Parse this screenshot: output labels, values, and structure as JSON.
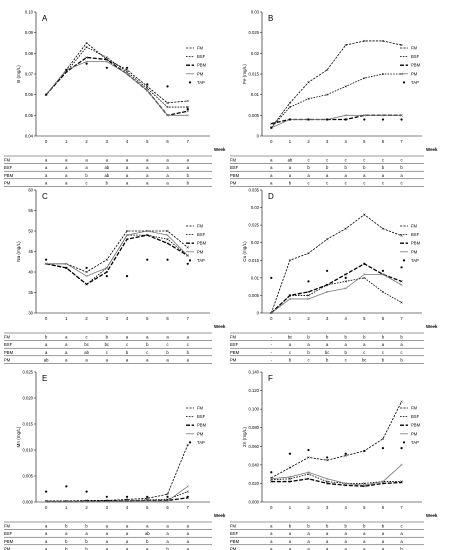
{
  "chart_data": [
    {
      "panel": "A",
      "type": "line",
      "ylabel": "B (mg/L)",
      "xlabel": "Week",
      "x": [
        0,
        1,
        2,
        3,
        4,
        5,
        6,
        7
      ],
      "ylim": [
        0.04,
        0.1
      ],
      "yticks": [
        0.04,
        0.05,
        0.06,
        0.07,
        0.08,
        0.09,
        0.1
      ],
      "ytick_labels": [
        "0.04",
        "0.05",
        "0.06",
        "0.07",
        "0.08",
        "0.09",
        "0.10"
      ],
      "series": [
        {
          "name": "FM",
          "values": [
            0.06,
            0.072,
            0.085,
            0.077,
            0.072,
            0.064,
            0.056,
            0.057
          ]
        },
        {
          "name": "BSF",
          "values": [
            0.06,
            0.071,
            0.083,
            0.078,
            0.071,
            0.063,
            0.054,
            0.054
          ]
        },
        {
          "name": "PBM",
          "values": [
            0.06,
            0.071,
            0.078,
            0.077,
            0.07,
            0.062,
            0.05,
            0.052
          ]
        },
        {
          "name": "PM",
          "values": [
            0.06,
            0.072,
            0.076,
            0.076,
            0.07,
            0.062,
            0.05,
            0.05
          ]
        },
        {
          "name": "TAP",
          "values": [
            0.06,
            0.072,
            0.075,
            0.073,
            0.073,
            0.065,
            0.064,
            0.053
          ]
        }
      ],
      "table": [
        {
          "label": "FM",
          "cells": [
            "a",
            "a",
            "a",
            "a",
            "a",
            "a",
            "a",
            "a"
          ]
        },
        {
          "label": "BSF",
          "cells": [
            "a",
            "a",
            "a",
            "ab",
            "a",
            "a",
            "a",
            "a"
          ]
        },
        {
          "label": "PBM",
          "cells": [
            "a",
            "a",
            "b",
            "ab",
            "a",
            "a",
            "a",
            "b"
          ]
        },
        {
          "label": "PM",
          "cells": [
            "a",
            "a",
            "c",
            "b",
            "a",
            "a",
            "a",
            "b"
          ]
        }
      ]
    },
    {
      "panel": "B",
      "type": "line",
      "ylabel": "Fe (mg/L)",
      "xlabel": "Week",
      "x": [
        0,
        1,
        2,
        3,
        4,
        5,
        6,
        7
      ],
      "ylim": [
        0,
        0.03
      ],
      "yticks": [
        0,
        0.005,
        0.01,
        0.015,
        0.02,
        0.025,
        0.03
      ],
      "ytick_labels": [
        "0",
        "0.005",
        "0.01",
        "0.015",
        "0.02",
        "0.025",
        "0.03"
      ],
      "series": [
        {
          "name": "FM",
          "values": [
            0.002,
            0.008,
            0.013,
            0.016,
            0.022,
            0.023,
            0.023,
            0.022
          ]
        },
        {
          "name": "BSF",
          "values": [
            0.002,
            0.007,
            0.009,
            0.01,
            0.012,
            0.014,
            0.015,
            0.015
          ]
        },
        {
          "name": "PBM",
          "values": [
            0.003,
            0.004,
            0.004,
            0.004,
            0.004,
            0.005,
            0.005,
            0.005
          ]
        },
        {
          "name": "PM",
          "values": [
            0.002,
            0.004,
            0.004,
            0.004,
            0.005,
            0.005,
            0.005,
            0.005
          ]
        },
        {
          "name": "TAP",
          "values": [
            0.002,
            0.004,
            0.004,
            0.004,
            0.004,
            0.004,
            0.004,
            0.004
          ]
        }
      ],
      "table": [
        {
          "label": "FM",
          "cells": [
            "a",
            "ab",
            "c",
            "c",
            "c",
            "c",
            "c",
            "c"
          ]
        },
        {
          "label": "BSF",
          "cells": [
            "a",
            "a",
            "b",
            "b",
            "b",
            "b",
            "b",
            "b"
          ]
        },
        {
          "label": "PBM",
          "cells": [
            "a",
            "a",
            "a",
            "a",
            "a",
            "a",
            "a",
            "a"
          ]
        },
        {
          "label": "PM",
          "cells": [
            "a",
            "b",
            "c",
            "c",
            "c",
            "c",
            "c",
            "c"
          ]
        }
      ]
    },
    {
      "panel": "C",
      "type": "line",
      "ylabel": "Na (mg/L)",
      "xlabel": "Week",
      "x": [
        0,
        1,
        2,
        3,
        4,
        5,
        6,
        7
      ],
      "ylim": [
        30,
        60
      ],
      "yticks": [
        30,
        35,
        40,
        45,
        50,
        55,
        60
      ],
      "ytick_labels": [
        "30",
        "35",
        "40",
        "45",
        "50",
        "55",
        "60"
      ],
      "series": [
        {
          "name": "FM",
          "values": [
            42,
            42,
            40,
            43,
            50,
            50,
            50,
            46
          ]
        },
        {
          "name": "BSF",
          "values": [
            42,
            41,
            37,
            41,
            49,
            49,
            48,
            44
          ]
        },
        {
          "name": "PBM",
          "values": [
            42,
            41,
            37,
            40,
            48,
            49,
            47,
            44
          ]
        },
        {
          "name": "PM",
          "values": [
            42,
            42,
            39,
            41,
            49,
            50,
            49,
            44
          ]
        },
        {
          "name": "TAP",
          "values": [
            43,
            41,
            41,
            39,
            39,
            43,
            43,
            42
          ]
        }
      ],
      "table": [
        {
          "label": "FM",
          "cells": [
            "b",
            "a",
            "c",
            "b",
            "a",
            "a",
            "a",
            "a"
          ]
        },
        {
          "label": "BSF",
          "cells": [
            "a",
            "a",
            "bc",
            "bc",
            "c",
            "b",
            "c",
            "c"
          ]
        },
        {
          "label": "PBM",
          "cells": [
            "a",
            "a",
            "ab",
            "c",
            "b",
            "c",
            "b",
            "b"
          ]
        },
        {
          "label": "PM",
          "cells": [
            "ab",
            "a",
            "a",
            "a",
            "a",
            "a",
            "a",
            "a"
          ]
        }
      ]
    },
    {
      "panel": "D",
      "type": "line",
      "ylabel": "Cu (mg/L)",
      "xlabel": "Week",
      "x": [
        0,
        1,
        2,
        3,
        4,
        5,
        6,
        7
      ],
      "ylim": [
        0,
        0.035
      ],
      "yticks": [
        0,
        0.005,
        0.01,
        0.015,
        0.02,
        0.025,
        0.03,
        0.035
      ],
      "ytick_labels": [
        "0",
        "0.005",
        "0.01",
        "0.015",
        "0.02",
        "0.025",
        "0.03",
        "0.035"
      ],
      "series": [
        {
          "name": "FM",
          "values": [
            0,
            0.015,
            0.017,
            0.021,
            0.024,
            0.028,
            0.024,
            0.022
          ]
        },
        {
          "name": "BSF",
          "values": [
            0,
            0.005,
            0.005,
            0.008,
            0.009,
            0.01,
            0.006,
            0.003
          ]
        },
        {
          "name": "PBM",
          "values": [
            0,
            0.005,
            0.006,
            0.008,
            0.011,
            0.014,
            0.011,
            0.009
          ]
        },
        {
          "name": "PM",
          "values": [
            0,
            0.004,
            0.004,
            0.006,
            0.007,
            0.011,
            0.011,
            0.008
          ]
        },
        {
          "name": "TAP",
          "values": [
            0.01,
            0.005,
            0.009,
            0.012,
            0.01,
            0.014,
            0.012,
            0.013
          ]
        }
      ],
      "table": [
        {
          "label": "FM",
          "cells": [
            "-",
            "bc",
            "b",
            "b",
            "b",
            "b",
            "b",
            "b"
          ]
        },
        {
          "label": "BSF",
          "cells": [
            "-",
            "a",
            "a",
            "a",
            "a",
            "a",
            "a",
            "a"
          ]
        },
        {
          "label": "PBM",
          "cells": [
            "-",
            "c",
            "b",
            "bc",
            "b",
            "c",
            "c",
            "c"
          ]
        },
        {
          "label": "PM",
          "cells": [
            "-",
            "b",
            "c",
            "b",
            "c",
            "bc",
            "b",
            "b"
          ]
        }
      ]
    },
    {
      "panel": "E",
      "type": "line",
      "ylabel": "Mn (mg/L)",
      "xlabel": "Week",
      "x": [
        0,
        1,
        2,
        3,
        4,
        5,
        6,
        7
      ],
      "ylim": [
        0,
        0.025
      ],
      "yticks": [
        0,
        0.005,
        0.01,
        0.015,
        0.02,
        0.025
      ],
      "ytick_labels": [
        "0.000",
        "0.005",
        "0.010",
        "0.015",
        "0.020",
        "0.025"
      ],
      "series": [
        {
          "name": "FM",
          "values": [
            0.0002,
            0.0002,
            0.0003,
            0.0003,
            0.0005,
            0.0007,
            0.0015,
            0.011
          ]
        },
        {
          "name": "BSF",
          "values": [
            0.0001,
            0.0001,
            0.0002,
            0.0002,
            0.0003,
            0.0004,
            0.0005,
            0.002
          ]
        },
        {
          "name": "PBM",
          "values": [
            0.0001,
            0.0001,
            0.0001,
            0.0002,
            0.0002,
            0.0003,
            0.0003,
            0.0008
          ]
        },
        {
          "name": "PM",
          "values": [
            0.0001,
            0.0001,
            0.0001,
            0.0001,
            0.0002,
            0.0002,
            0.0002,
            0.003
          ]
        },
        {
          "name": "TAP",
          "values": [
            0.002,
            0.003,
            0.002,
            0.001,
            0.001,
            0.001,
            0.001,
            0.001
          ]
        }
      ],
      "table": [
        {
          "label": "FM",
          "cells": [
            "a",
            "b",
            "b",
            "a",
            "a",
            "a",
            "a",
            "a"
          ]
        },
        {
          "label": "BSF",
          "cells": [
            "a",
            "a",
            "a",
            "a",
            "a",
            "ab",
            "a",
            "a"
          ]
        },
        {
          "label": "PBM",
          "cells": [
            "a",
            "b",
            "b",
            "a",
            "a",
            "b",
            "a",
            "a"
          ]
        },
        {
          "label": "PM",
          "cells": [
            "a",
            "b",
            "b",
            "a",
            "a",
            "a",
            "b",
            "a"
          ]
        }
      ]
    },
    {
      "panel": "F",
      "type": "line",
      "ylabel": "Zn (mg/L)",
      "xlabel": "Week",
      "x": [
        0,
        1,
        2,
        3,
        4,
        5,
        6,
        7
      ],
      "ylim": [
        0,
        0.14
      ],
      "yticks": [
        0,
        0.02,
        0.04,
        0.06,
        0.08,
        0.1,
        0.12,
        0.14
      ],
      "ytick_labels": [
        "0.000",
        "0.020",
        "0.040",
        "0.060",
        "0.080",
        "0.100",
        "0.120",
        "0.140"
      ],
      "series": [
        {
          "name": "FM",
          "values": [
            0.026,
            0.037,
            0.048,
            0.045,
            0.05,
            0.055,
            0.068,
            0.108
          ]
        },
        {
          "name": "BSF",
          "values": [
            0.024,
            0.025,
            0.03,
            0.022,
            0.02,
            0.02,
            0.022,
            0.022
          ]
        },
        {
          "name": "PBM",
          "values": [
            0.022,
            0.022,
            0.025,
            0.02,
            0.018,
            0.017,
            0.02,
            0.021
          ]
        },
        {
          "name": "PM",
          "values": [
            0.025,
            0.027,
            0.032,
            0.025,
            0.02,
            0.018,
            0.022,
            0.04
          ]
        },
        {
          "name": "TAP",
          "values": [
            0.032,
            0.052,
            0.056,
            0.048,
            0.052,
            0.055,
            0.058,
            0.058
          ]
        }
      ],
      "table": [
        {
          "label": "FM",
          "cells": [
            "a",
            "b",
            "b",
            "b",
            "b",
            "b",
            "b",
            "c"
          ]
        },
        {
          "label": "BSF",
          "cells": [
            "a",
            "a",
            "a",
            "a",
            "a",
            "a",
            "a",
            "a"
          ]
        },
        {
          "label": "PBM",
          "cells": [
            "a",
            "a",
            "a",
            "a",
            "a",
            "a",
            "a",
            "a"
          ]
        },
        {
          "label": "PM",
          "cells": [
            "a",
            "a",
            "a",
            "a",
            "a",
            "a",
            "a",
            "b"
          ]
        }
      ]
    }
  ]
}
